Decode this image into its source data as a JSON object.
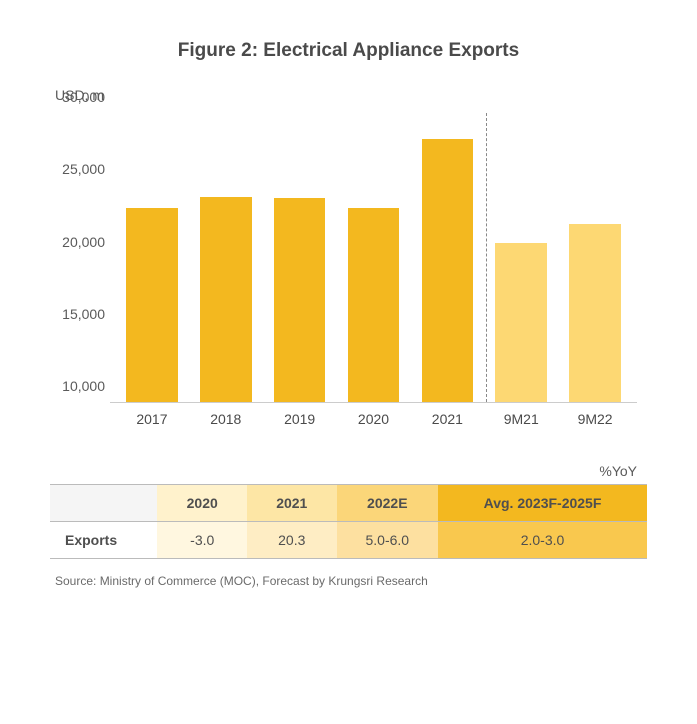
{
  "title": "Figure 2: Electrical Appliance Exports",
  "title_fontsize": 19,
  "ylabel": "USD, m",
  "label_fontsize": 14,
  "chart": {
    "type": "bar",
    "categories": [
      "2017",
      "2018",
      "2019",
      "2020",
      "2021",
      "9M21",
      "9M22"
    ],
    "values": [
      23400,
      24200,
      24100,
      23400,
      28200,
      21000,
      22300
    ],
    "bar_colors": [
      "#f3b81f",
      "#f3b81f",
      "#f3b81f",
      "#f3b81f",
      "#f3b81f",
      "#fdd873",
      "#fdd873"
    ],
    "ylim": [
      10000,
      30000
    ],
    "yticks": [
      10000,
      15000,
      20000,
      25000,
      30000
    ],
    "ytick_labels": [
      "10,000",
      "15,000",
      "20,000",
      "25,000",
      "30,000"
    ],
    "tick_fontsize": 14,
    "background_color": "#ffffff",
    "divider_after_index": 4,
    "divider_color": "#888888"
  },
  "yoy_label": "%YoY",
  "table": {
    "header_bg_colors": [
      "#f5f5f5",
      "#fff2cc",
      "#fde6a5",
      "#fbd679",
      "#f3b81f"
    ],
    "row_bg_colors": [
      "#ffffff",
      "#fff7e0",
      "#feedc4",
      "#fde0a0",
      "#f9c84e"
    ],
    "columns": [
      "",
      "2020",
      "2021",
      "2022E",
      "Avg. 2023F-2025F"
    ],
    "col_widths_pct": [
      18,
      15,
      15,
      17,
      35
    ],
    "rows": [
      [
        "Exports",
        "-3.0",
        "20.3",
        "5.0-6.0",
        "2.0-3.0"
      ]
    ],
    "header_fontsize": 14,
    "cell_fontsize": 14,
    "text_color": "#4f4f4f"
  },
  "source": "Source: Ministry of Commerce (MOC), Forecast by Krungsri Research",
  "source_fontsize": 12
}
